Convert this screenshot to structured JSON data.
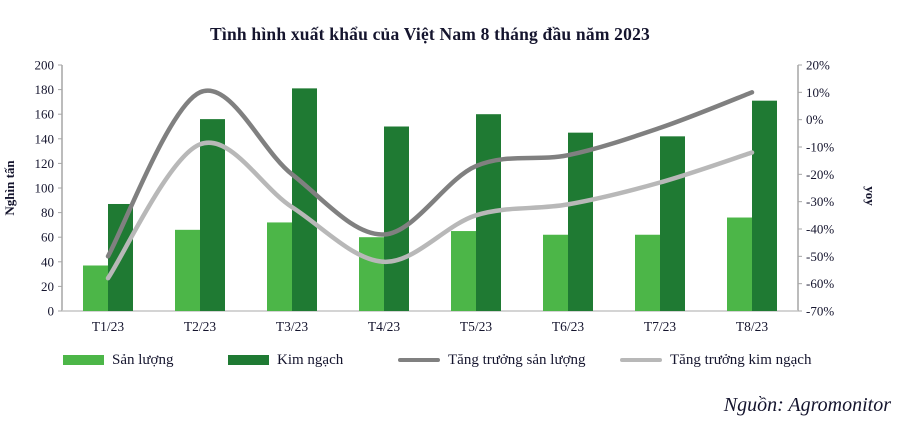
{
  "title": "Tình hình xuất khẩu của Việt Nam 8 tháng đầu năm 2023",
  "source": "Nguồn: Agromonitor",
  "colors": {
    "bar_light_green": "#4CB648",
    "bar_dark_green": "#1F7A33",
    "line_dark_gray": "#808080",
    "line_light_gray": "#B8B8B8",
    "axis_line": "#A6A6A6",
    "bottom_axis_line": "#C6C6C6",
    "text": "#15152E"
  },
  "chart_data": {
    "type": "bar",
    "subtype": "combo-bar-line",
    "categories": [
      "T1/23",
      "T2/23",
      "T3/23",
      "T4/23",
      "T5/23",
      "T6/23",
      "T7/23",
      "T8/23"
    ],
    "bar_series": [
      {
        "name": "Sản lượng",
        "color": "#4CB648",
        "values": [
          37,
          66,
          72,
          60,
          65,
          62,
          62,
          76
        ]
      },
      {
        "name": "Kim ngạch",
        "color": "#1F7A33",
        "values": [
          87,
          156,
          181,
          150,
          160,
          145,
          142,
          171
        ]
      }
    ],
    "line_series": [
      {
        "name": "Tăng trưởng sản lượng",
        "color": "#808080",
        "values_pct": [
          -50,
          10,
          -20,
          -42,
          -17,
          -13,
          -3,
          10
        ]
      },
      {
        "name": "Tăng trưởng kim ngạch",
        "color": "#B8B8B8",
        "values_pct": [
          -58,
          -9,
          -32,
          -52,
          -35,
          -31,
          -23,
          -12
        ]
      }
    ],
    "left_axis": {
      "label": "Nghìn tấn",
      "min": 0,
      "max": 200,
      "step": 20
    },
    "right_axis": {
      "label": "yoy",
      "min": -70,
      "max": 20,
      "step": 10,
      "suffix": "%"
    },
    "legend_position": "bottom",
    "grid": false
  }
}
